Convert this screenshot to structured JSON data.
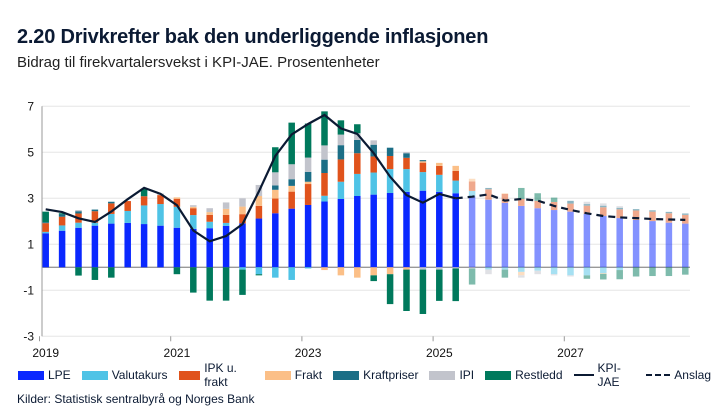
{
  "title": "2.20 Drivkrefter bak den underliggende inflasjonen",
  "subtitle": "Bidrag til firekvartalersvekst i KPI-JAE. Prosentenheter",
  "source": "Kilder: Statistisk sentralbyrå og Norges Bank",
  "chart_data": {
    "type": "bar",
    "stacked": true,
    "title": "2.20 Drivkrefter bak den underliggende inflasjonen",
    "ylim": [
      -3,
      7
    ],
    "yticks": [
      "7",
      "5",
      "3",
      "1",
      "-1",
      "-3"
    ],
    "xticks": [
      "2019",
      "2021",
      "2023",
      "2025",
      "2027"
    ],
    "grid": true,
    "legend": "bottom",
    "categories": [
      "2019Q1",
      "2019Q2",
      "2019Q3",
      "2019Q4",
      "2020Q1",
      "2020Q2",
      "2020Q3",
      "2020Q4",
      "2021Q1",
      "2021Q2",
      "2021Q3",
      "2021Q4",
      "2022Q1",
      "2022Q2",
      "2022Q3",
      "2022Q4",
      "2023Q1",
      "2023Q2",
      "2023Q3",
      "2023Q4",
      "2024Q1",
      "2024Q2",
      "2024Q3",
      "2024Q4",
      "2025Q1",
      "2025Q2",
      "2025Q3",
      "2025Q4",
      "2026Q1",
      "2026Q2",
      "2026Q3",
      "2026Q4",
      "2027Q1",
      "2027Q2",
      "2027Q3",
      "2027Q4",
      "2028Q1",
      "2028Q2",
      "2028Q3",
      "2028Q4"
    ],
    "forecast_from": "2025Q3",
    "series": [
      {
        "name": "LPE",
        "color": "#0a28ff",
        "values": [
          1.48,
          1.59,
          1.72,
          1.81,
          1.9,
          1.93,
          1.88,
          1.81,
          1.72,
          1.67,
          1.7,
          1.8,
          1.91,
          2.12,
          2.35,
          2.55,
          2.71,
          2.86,
          2.97,
          3.1,
          3.16,
          3.23,
          3.28,
          3.33,
          3.28,
          3.22,
          3.09,
          2.94,
          2.8,
          2.67,
          2.57,
          2.49,
          2.42,
          2.32,
          2.23,
          2.14,
          2.06,
          2.01,
          1.94,
          1.9
        ]
      },
      {
        "name": "Valutakurs",
        "color": "#4fc3e6",
        "values": [
          0.06,
          0.23,
          0.22,
          0.13,
          0.42,
          0.52,
          0.81,
          0.94,
          0.91,
          0.6,
          0.28,
          0.13,
          -0.1,
          -0.3,
          -0.45,
          -0.55,
          -0.05,
          0.25,
          0.75,
          0.96,
          0.96,
          1.04,
          0.99,
          0.81,
          0.74,
          0.55,
          0.23,
          -0.1,
          -0.1,
          -0.2,
          -0.15,
          -0.3,
          -0.35,
          -0.35,
          -0.25,
          -0.12,
          0,
          0,
          0,
          0
        ]
      },
      {
        "name": "IPK u. frakt",
        "color": "#e0531c",
        "values": [
          0.38,
          0.38,
          0.4,
          0.5,
          0.46,
          0.43,
          0.4,
          0.39,
          0.35,
          0.3,
          0.3,
          0.35,
          0.4,
          0.55,
          0.64,
          0.74,
          0.91,
          0.99,
          0.97,
          0.9,
          0.7,
          0.57,
          0.49,
          0.41,
          0.39,
          0.42,
          0.41,
          0.45,
          0.39,
          0.3,
          0.32,
          0.35,
          0.35,
          0.36,
          0.38,
          0.38,
          0.41,
          0.41,
          0.41,
          0.38
        ]
      },
      {
        "name": "Frakt",
        "color": "#fbbf87",
        "values": [
          0,
          0,
          0,
          0,
          0,
          0,
          0,
          0,
          0.06,
          0.06,
          0.12,
          0.26,
          0.33,
          0.43,
          0.38,
          0.25,
          0.1,
          -0.12,
          -0.35,
          -0.45,
          -0.35,
          -0.3,
          -0.1,
          0.06,
          0.13,
          0.22,
          0.12,
          0,
          0.03,
          -0.15,
          0,
          0,
          0,
          0,
          -0.03,
          0,
          0,
          0,
          0,
          0
        ]
      },
      {
        "name": "Kraftpriser",
        "color": "#1b6e86",
        "values": [
          0.04,
          0.1,
          0.1,
          0.07,
          0.07,
          0,
          0,
          0,
          0,
          0,
          0,
          0,
          0,
          0,
          0.19,
          0.29,
          0.43,
          0.58,
          0.62,
          0.58,
          0.51,
          0.36,
          0.2,
          0.05,
          0,
          0,
          0,
          0.06,
          0,
          0,
          0,
          0,
          0.12,
          0.07,
          0.07,
          0.07,
          0.06,
          0.06,
          0.06,
          0.06
        ]
      },
      {
        "name": "IPI",
        "color": "#c2c4cc",
        "values": [
          0,
          0,
          0.05,
          0,
          0,
          0,
          0,
          0.07,
          0,
          0.07,
          0.17,
          0.28,
          0.36,
          0.48,
          0.57,
          0.65,
          0.62,
          0.62,
          0.46,
          0.29,
          0.19,
          0,
          0.05,
          -0.1,
          -0.1,
          -0.05,
          -0.05,
          -0.2,
          0,
          -0.1,
          -0.15,
          -0.05,
          -0.05,
          0.1,
          0.1,
          0.07,
          0,
          0,
          0,
          0
        ]
      },
      {
        "name": "Restledd",
        "color": "#00795c",
        "values": [
          0.46,
          0.05,
          -0.36,
          -0.55,
          -0.45,
          0,
          0.33,
          0,
          -0.3,
          -1.1,
          -1.45,
          -1.45,
          -1.1,
          -0.05,
          1.09,
          1.81,
          1.48,
          1.48,
          0.62,
          0.39,
          -0.25,
          -1.3,
          -1.8,
          -1.93,
          -1.36,
          -1.42,
          -0.7,
          0,
          -0.35,
          0.48,
          0.33,
          0.19,
          0,
          -0.15,
          -0.25,
          -0.4,
          -0.4,
          -0.38,
          -0.38,
          -0.32
        ]
      }
    ],
    "lines": [
      {
        "name": "KPI-JAE",
        "style": "solid",
        "color": "#0b1a33",
        "start": "2019Q1",
        "values": [
          2.52,
          2.4,
          2.13,
          1.97,
          2.42,
          2.96,
          3.45,
          3.19,
          2.7,
          1.6,
          1.13,
          1.36,
          1.88,
          3.3,
          4.84,
          5.78,
          6.23,
          6.62,
          6.04,
          5.8,
          4.96,
          3.94,
          3.14,
          2.81,
          3.19,
          3.0
        ]
      },
      {
        "name": "Anslag",
        "style": "dashed",
        "color": "#0b1a33",
        "start": "2025Q2",
        "values": [
          3.0,
          3.07,
          3.17,
          2.9,
          2.97,
          2.9,
          2.67,
          2.49,
          2.35,
          2.23,
          2.17,
          2.14,
          2.1,
          2.08,
          2.06
        ]
      }
    ]
  }
}
